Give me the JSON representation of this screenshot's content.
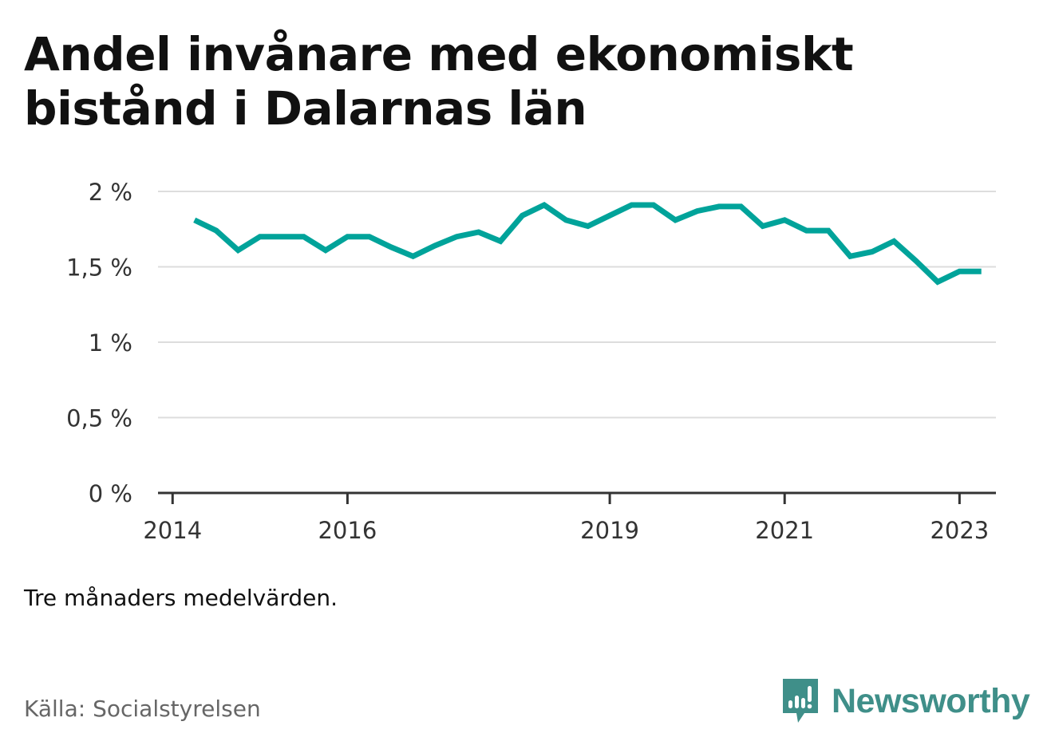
{
  "header": {
    "title": "Andel invånare med ekonomiskt bistånd i Dalarnas län"
  },
  "footer": {
    "note": "Tre månaders medelvärden.",
    "source": "Källa: Socialstyrelsen",
    "brand": "Newsworthy"
  },
  "colors": {
    "line": "#00a39a",
    "grid": "#dddddd",
    "axis": "#333333",
    "brand": "#3f8f89"
  },
  "chart_data": {
    "type": "line",
    "title": "Andel invånare med ekonomiskt bistånd i Dalarnas län",
    "xlabel": "",
    "ylabel": "",
    "grid": true,
    "y_ticks": [
      {
        "value": 0,
        "label": "0 %"
      },
      {
        "value": 0.5,
        "label": "0,5 %"
      },
      {
        "value": 1,
        "label": "1 %"
      },
      {
        "value": 1.5,
        "label": "1,5 %"
      },
      {
        "value": 2,
        "label": "2 %"
      }
    ],
    "x_ticks": [
      {
        "value": "2014-01",
        "label": "2014"
      },
      {
        "value": "2016-01",
        "label": "2016"
      },
      {
        "value": "2019-01",
        "label": "2019"
      },
      {
        "value": "2021-01",
        "label": "2021"
      },
      {
        "value": "2023-01",
        "label": "2023"
      }
    ],
    "xlim": [
      "2013-11",
      "2023-06"
    ],
    "ylim": [
      0,
      2
    ],
    "series": [
      {
        "x": [
          "2014-04",
          "2014-07",
          "2014-10",
          "2015-01",
          "2015-04",
          "2015-07",
          "2015-10",
          "2016-01",
          "2016-04",
          "2016-07",
          "2016-10",
          "2017-01",
          "2017-04",
          "2017-07",
          "2017-10",
          "2018-01",
          "2018-04",
          "2018-07",
          "2018-10",
          "2019-01",
          "2019-04",
          "2019-07",
          "2019-10",
          "2020-01",
          "2020-04",
          "2020-07",
          "2020-10",
          "2021-01",
          "2021-04",
          "2021-07",
          "2021-10",
          "2022-01",
          "2022-04",
          "2022-07",
          "2022-10",
          "2023-01",
          "2023-04"
        ],
        "values": [
          1.81,
          1.74,
          1.61,
          1.7,
          1.7,
          1.7,
          1.61,
          1.7,
          1.7,
          1.63,
          1.57,
          1.64,
          1.7,
          1.73,
          1.67,
          1.84,
          1.91,
          1.81,
          1.77,
          1.84,
          1.91,
          1.91,
          1.81,
          1.87,
          1.9,
          1.9,
          1.77,
          1.81,
          1.74,
          1.74,
          1.57,
          1.6,
          1.67,
          1.54,
          1.4,
          1.47,
          1.47
        ]
      }
    ]
  }
}
